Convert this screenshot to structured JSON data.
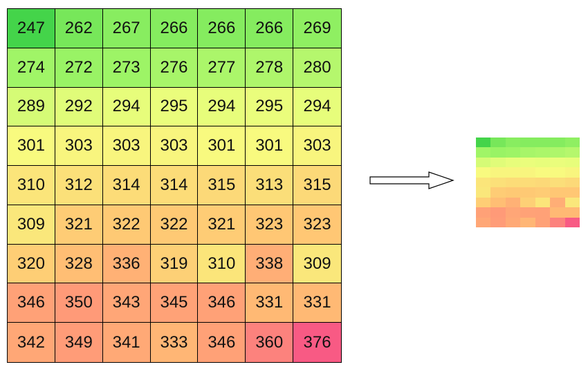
{
  "value_grid": {
    "rows": [
      [
        247,
        262,
        267,
        266,
        266,
        266,
        269
      ],
      [
        274,
        272,
        273,
        276,
        277,
        278,
        280
      ],
      [
        289,
        292,
        294,
        295,
        294,
        295,
        294
      ],
      [
        301,
        303,
        303,
        303,
        301,
        301,
        303
      ],
      [
        310,
        312,
        314,
        314,
        315,
        313,
        315
      ],
      [
        309,
        321,
        322,
        322,
        321,
        323,
        323
      ],
      [
        320,
        328,
        336,
        319,
        310,
        338,
        309
      ],
      [
        346,
        350,
        343,
        345,
        346,
        331,
        331
      ],
      [
        342,
        349,
        341,
        333,
        346,
        360,
        376
      ]
    ]
  },
  "color_scale": {
    "min_value": 247,
    "max_value": 376,
    "stops": [
      "#44d44a",
      "#9cf466",
      "#f7ff80",
      "#ffc473",
      "#ff9a78",
      "#f85a84"
    ]
  },
  "arrow": {
    "icon": "right-arrow-icon",
    "color": "#000000"
  },
  "thumbnail": {
    "description_icon": "heatmap-thumbnail"
  }
}
